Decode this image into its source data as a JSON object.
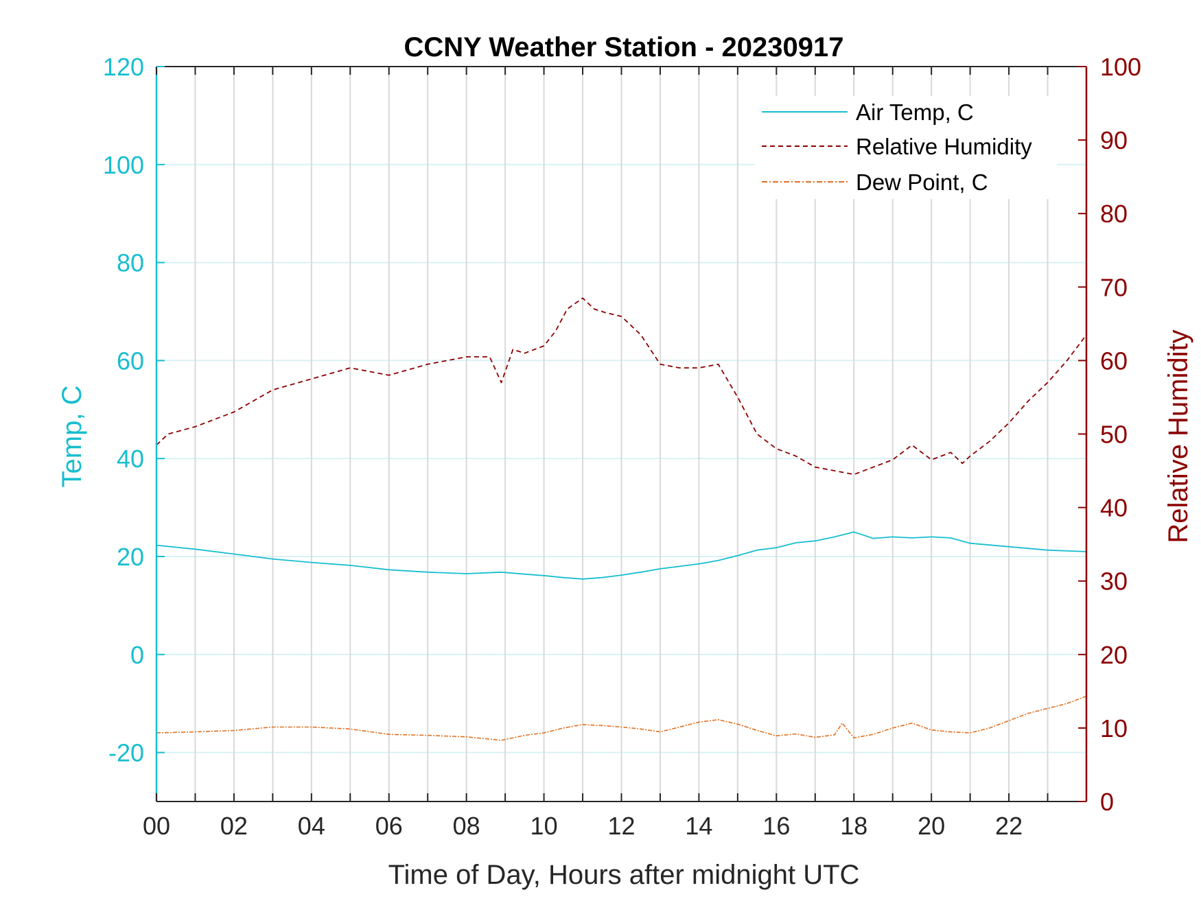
{
  "colors": {
    "air_temp": "#17BECF",
    "humidity": "#8B0000",
    "dew_point": "#E07020",
    "grid_vertical": "#D9D9D9",
    "grid_horizontal": "#D8F1F6",
    "axis_dark": "#262626"
  },
  "chart_data": {
    "type": "line",
    "title": "CCNY Weather Station - 20230917",
    "xlabel": "Time of Day, Hours after midnight UTC",
    "ylabel_left": "Temp, C",
    "ylabel_right": "Relative Humidity",
    "xlim": [
      0,
      24
    ],
    "ylim_left": [
      -30,
      120
    ],
    "ylim_right": [
      0,
      100
    ],
    "x_ticks": [
      0,
      2,
      4,
      6,
      8,
      10,
      12,
      14,
      16,
      18,
      20,
      22
    ],
    "x_tick_labels": [
      "00",
      "02",
      "04",
      "06",
      "08",
      "10",
      "12",
      "14",
      "16",
      "18",
      "20",
      "22"
    ],
    "y_left_ticks": [
      -20,
      0,
      20,
      40,
      60,
      80,
      100,
      120
    ],
    "y_left_tick_labels": [
      "-20",
      "0",
      "20",
      "40",
      "60",
      "80",
      "100",
      "120"
    ],
    "y_right_ticks": [
      0,
      10,
      20,
      30,
      40,
      50,
      60,
      70,
      80,
      90,
      100
    ],
    "y_right_tick_labels": [
      "0",
      "10",
      "20",
      "30",
      "40",
      "50",
      "60",
      "70",
      "80",
      "90",
      "100"
    ],
    "grid": "on",
    "legend_position": "top-right",
    "series": [
      {
        "name": "Air Temp, C",
        "axis": "left",
        "style": "solid",
        "x": [
          0,
          1,
          2,
          3,
          4,
          5,
          6,
          7,
          8,
          8.9,
          9.5,
          10,
          10.5,
          11,
          11.5,
          12,
          12.5,
          13,
          13.5,
          14,
          14.5,
          15,
          15.5,
          16,
          16.5,
          17,
          17.5,
          18,
          18.5,
          19,
          19.5,
          20,
          20.5,
          21,
          22,
          23,
          24
        ],
        "values": [
          22.3,
          21.5,
          20.5,
          19.5,
          18.8,
          18.2,
          17.3,
          16.8,
          16.5,
          16.8,
          16.4,
          16.1,
          15.7,
          15.4,
          15.7,
          16.2,
          16.8,
          17.5,
          18.0,
          18.5,
          19.2,
          20.2,
          21.3,
          21.8,
          22.8,
          23.2,
          24.0,
          25.0,
          23.7,
          24.0,
          23.8,
          24.0,
          23.8,
          22.7,
          22.0,
          21.3,
          21.0
        ]
      },
      {
        "name": "Relative Humidity",
        "axis": "right",
        "style": "dashed",
        "x": [
          0,
          0.3,
          1,
          2,
          3,
          4,
          5,
          6,
          7,
          8,
          8.6,
          8.9,
          9.2,
          9.5,
          10,
          10.3,
          10.6,
          11,
          11.3,
          11.6,
          12,
          12.5,
          13,
          13.5,
          14,
          14.5,
          15,
          15.5,
          16,
          16.5,
          17,
          17.5,
          18,
          18.5,
          19,
          19.5,
          20,
          20.5,
          20.8,
          21,
          21.5,
          22,
          22.5,
          23,
          23.5,
          24
        ],
        "values": [
          48.5,
          50,
          51,
          53,
          56,
          57.5,
          59,
          58,
          59.5,
          60.5,
          60.5,
          57,
          61.5,
          61,
          62,
          64,
          67,
          68.5,
          67,
          66.5,
          66,
          63.5,
          59.5,
          59,
          59,
          59.5,
          55,
          50,
          48,
          47,
          45.5,
          45,
          44.5,
          45.5,
          46.5,
          48.5,
          46.5,
          47.5,
          46,
          47,
          49,
          51.5,
          54.5,
          57,
          60,
          63.5
        ]
      },
      {
        "name": "Dew Point, C",
        "axis": "left",
        "style": "dash-dot",
        "x": [
          0,
          1,
          2,
          3,
          4,
          5,
          6,
          7,
          8,
          8.9,
          9.5,
          10,
          10.5,
          11,
          11.5,
          12,
          12.5,
          13,
          13.5,
          14,
          14.5,
          15,
          15.5,
          16,
          16.5,
          17,
          17.5,
          17.7,
          18,
          18.5,
          19,
          19.5,
          20,
          20.5,
          21,
          21.5,
          22,
          22.5,
          23,
          23.5,
          24
        ],
        "values": [
          -16.0,
          -15.8,
          -15.5,
          -14.8,
          -14.8,
          -15.2,
          -16.3,
          -16.5,
          -16.8,
          -17.5,
          -16.5,
          -16.0,
          -15.0,
          -14.3,
          -14.5,
          -14.8,
          -15.2,
          -15.8,
          -14.8,
          -13.8,
          -13.3,
          -14.2,
          -15.5,
          -16.6,
          -16.2,
          -16.9,
          -16.4,
          -14.0,
          -17.0,
          -16.3,
          -15.0,
          -14.0,
          -15.4,
          -15.8,
          -16.0,
          -15.0,
          -13.5,
          -12.0,
          -11.0,
          -10.0,
          -8.5
        ]
      }
    ]
  }
}
